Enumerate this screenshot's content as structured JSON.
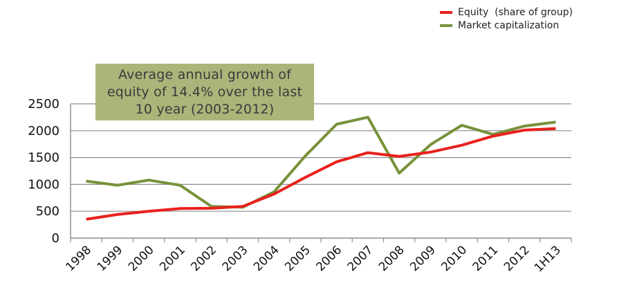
{
  "chart_data": {
    "type": "line",
    "title": "",
    "xlabel": "",
    "ylabel": "",
    "categories": [
      "1998",
      "1999",
      "2000",
      "2001",
      "2002",
      "2003",
      "2004",
      "2005",
      "2006",
      "2007",
      "2008",
      "2009",
      "2010",
      "2011",
      "2012",
      "1H13"
    ],
    "ylim": [
      0,
      2500
    ],
    "yticks": [
      0,
      500,
      1000,
      1500,
      2000,
      2500
    ],
    "grid": true,
    "legend_position": "top-right",
    "series": [
      {
        "name": "Equity  (share of group)",
        "color": "#e8211c",
        "values": [
          350,
          440,
          500,
          550,
          555,
          590,
          820,
          1130,
          1420,
          1590,
          1520,
          1600,
          1730,
          1900,
          2010,
          2040
        ]
      },
      {
        "name": "Market capitalization",
        "color": "#77923a",
        "values": [
          1060,
          985,
          1080,
          985,
          590,
          575,
          860,
          1530,
          2120,
          2250,
          1210,
          1740,
          2100,
          1930,
          2085,
          2160
        ]
      }
    ],
    "annotation": "Average annual growth of equity of 14.4% over the last 10 year (2003-2012)"
  },
  "colors": {
    "gridline": "#8c8c8c",
    "callout_bg": "#aab57a"
  }
}
